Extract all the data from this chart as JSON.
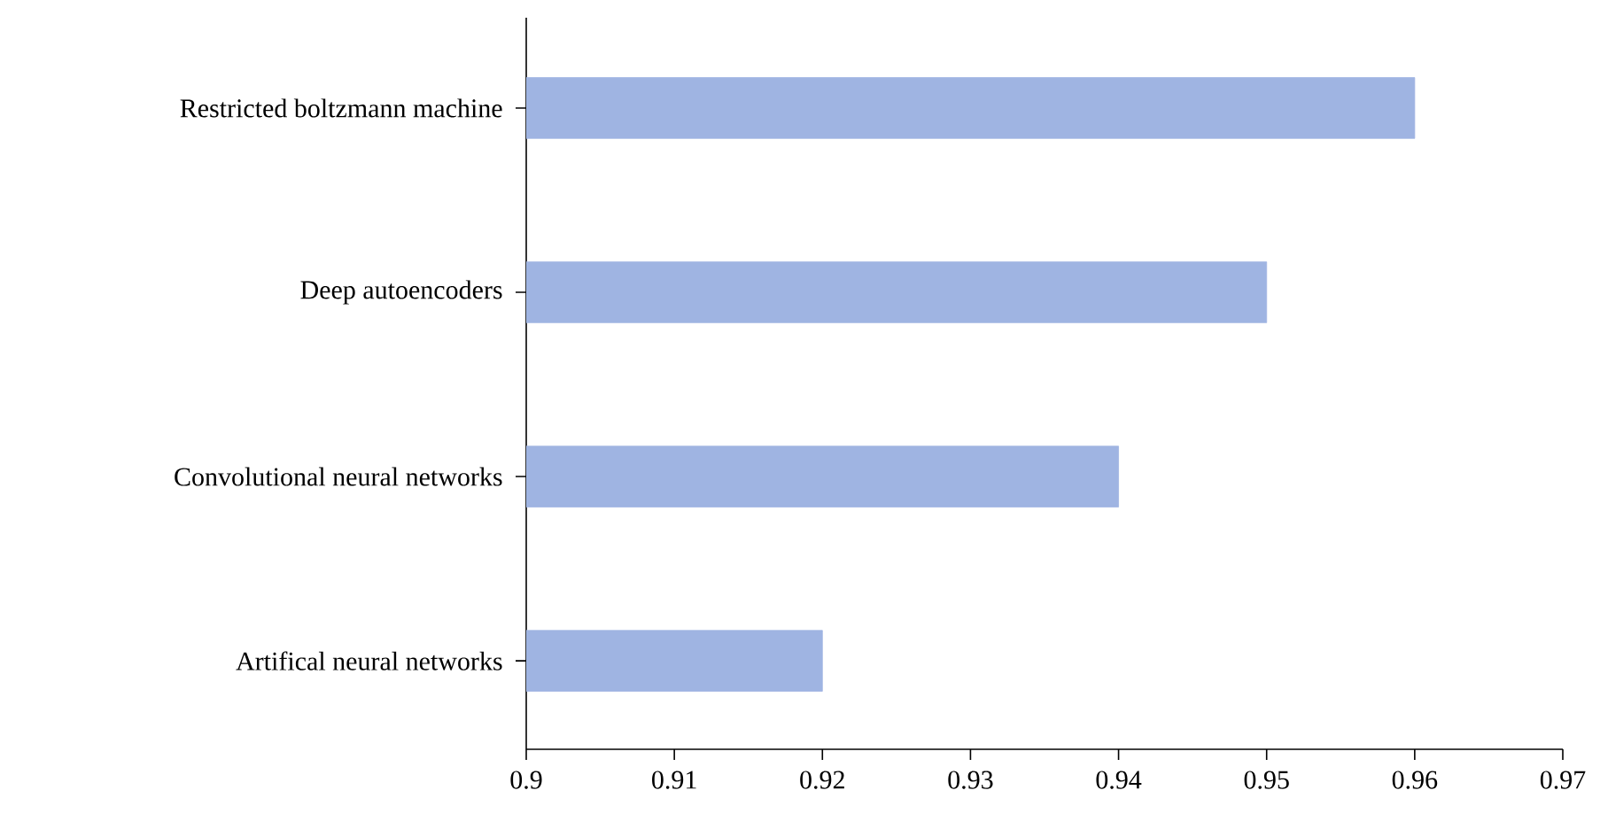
{
  "chart_data": {
    "type": "bar",
    "orientation": "horizontal",
    "categories": [
      "Restricted boltzmann machine",
      "Deep autoencoders",
      "Convolutional neural networks",
      "Artifical neural networks"
    ],
    "values": [
      0.96,
      0.95,
      0.94,
      0.92
    ],
    "color": "#9fb4e2",
    "xlim": [
      0.9,
      0.97
    ],
    "xticks": [
      0.9,
      0.91,
      0.92,
      0.93,
      0.94,
      0.95,
      0.96,
      0.97
    ]
  }
}
